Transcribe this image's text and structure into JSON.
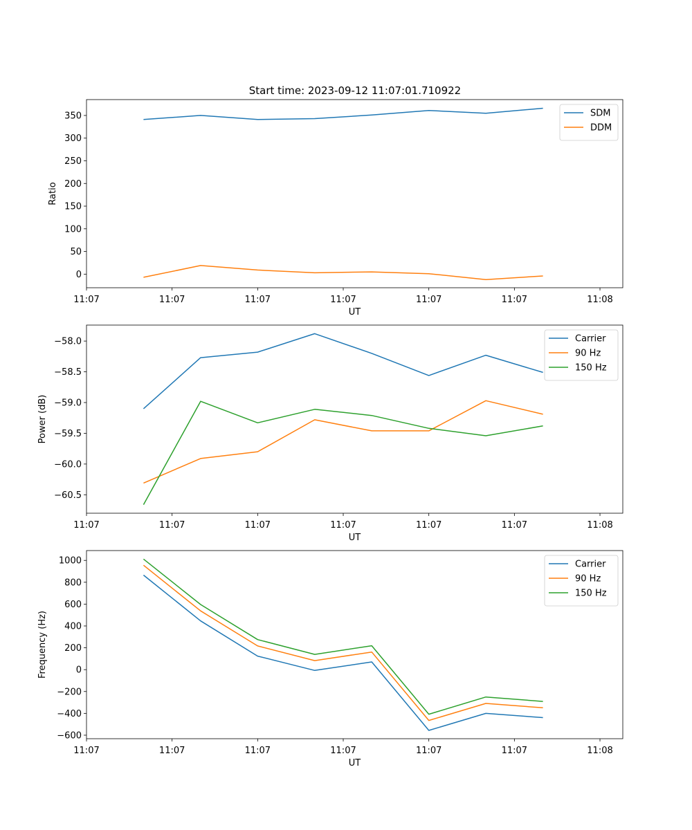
{
  "figure_title": "Start time: 2023-09-12 11:07:01.710922",
  "colors": {
    "blue": "#1f77b4",
    "orange": "#ff7f0e",
    "green": "#2ca02c"
  },
  "chart_data": [
    {
      "type": "line",
      "title": "Start time: 2023-09-12 11:07:01.710922",
      "xlabel": "UT",
      "ylabel": "Ratio",
      "x": [
        1,
        2,
        3,
        4,
        5,
        6,
        7,
        8
      ],
      "xlim": [
        0,
        9.4
      ],
      "x_tick_positions": [
        0,
        1.5,
        3,
        4.5,
        6,
        7.5,
        9
      ],
      "x_tick_labels": [
        "11:07",
        "11:07",
        "11:07",
        "11:07",
        "11:07",
        "11:07",
        "11:08"
      ],
      "ylim": [
        -30,
        385
      ],
      "y_ticks": [
        0,
        50,
        100,
        150,
        200,
        250,
        300,
        350
      ],
      "y_tick_labels": [
        "0",
        "50",
        "100",
        "150",
        "200",
        "250",
        "300",
        "350"
      ],
      "legend_position": "top-right",
      "grid": false,
      "series": [
        {
          "name": "SDM",
          "color": "#1f77b4",
          "values": [
            341,
            350,
            341,
            343,
            351,
            361,
            355,
            366
          ]
        },
        {
          "name": "DDM",
          "color": "#ff7f0e",
          "values": [
            -7,
            19,
            9,
            3,
            5,
            1,
            -12,
            -4
          ]
        }
      ]
    },
    {
      "type": "line",
      "title": "",
      "xlabel": "UT",
      "ylabel": "Power (dB)",
      "x": [
        1,
        2,
        3,
        4,
        5,
        6,
        7,
        8
      ],
      "xlim": [
        0,
        9.4
      ],
      "x_tick_positions": [
        0,
        1.5,
        3,
        4.5,
        6,
        7.5,
        9
      ],
      "x_tick_labels": [
        "11:07",
        "11:07",
        "11:07",
        "11:07",
        "11:07",
        "11:07",
        "11:08"
      ],
      "ylim": [
        -60.8,
        -57.74
      ],
      "y_ticks": [
        -60.5,
        -60.0,
        -59.5,
        -59.0,
        -58.5,
        -58.0
      ],
      "y_tick_labels": [
        "−60.5",
        "−60.0",
        "−59.5",
        "−59.0",
        "−58.5",
        "−58.0"
      ],
      "legend_position": "top-right",
      "grid": false,
      "series": [
        {
          "name": "Carrier",
          "color": "#1f77b4",
          "values": [
            -59.1,
            -58.27,
            -58.18,
            -57.88,
            -58.2,
            -58.56,
            -58.23,
            -58.51
          ]
        },
        {
          "name": "90 Hz",
          "color": "#ff7f0e",
          "values": [
            -60.31,
            -59.91,
            -59.8,
            -59.28,
            -59.46,
            -59.46,
            -58.97,
            -59.19
          ]
        },
        {
          "name": "150 Hz",
          "color": "#2ca02c",
          "values": [
            -60.66,
            -58.98,
            -59.33,
            -59.11,
            -59.21,
            -59.42,
            -59.54,
            -59.38
          ]
        }
      ]
    },
    {
      "type": "line",
      "title": "",
      "xlabel": "UT",
      "ylabel": "Frequency (Hz)",
      "x": [
        1,
        2,
        3,
        4,
        5,
        6,
        7,
        8
      ],
      "xlim": [
        0,
        9.4
      ],
      "x_tick_positions": [
        0,
        1.5,
        3,
        4.5,
        6,
        7.5,
        9
      ],
      "x_tick_labels": [
        "11:07",
        "11:07",
        "11:07",
        "11:07",
        "11:07",
        "11:07",
        "11:08"
      ],
      "ylim": [
        -632,
        1090
      ],
      "y_ticks": [
        -600,
        -400,
        -200,
        0,
        200,
        400,
        600,
        800,
        1000
      ],
      "y_tick_labels": [
        "−600",
        "−400",
        "−200",
        "0",
        "200",
        "400",
        "600",
        "800",
        "1000"
      ],
      "legend_position": "top-right",
      "grid": false,
      "series": [
        {
          "name": "Carrier",
          "color": "#1f77b4",
          "values": [
            865,
            446,
            124,
            -7,
            71,
            -556,
            -400,
            -439
          ]
        },
        {
          "name": "90 Hz",
          "color": "#ff7f0e",
          "values": [
            956,
            538,
            217,
            83,
            161,
            -465,
            -309,
            -349
          ]
        },
        {
          "name": "150 Hz",
          "color": "#2ca02c",
          "values": [
            1012,
            596,
            275,
            140,
            219,
            -408,
            -250,
            -291
          ]
        }
      ]
    }
  ]
}
